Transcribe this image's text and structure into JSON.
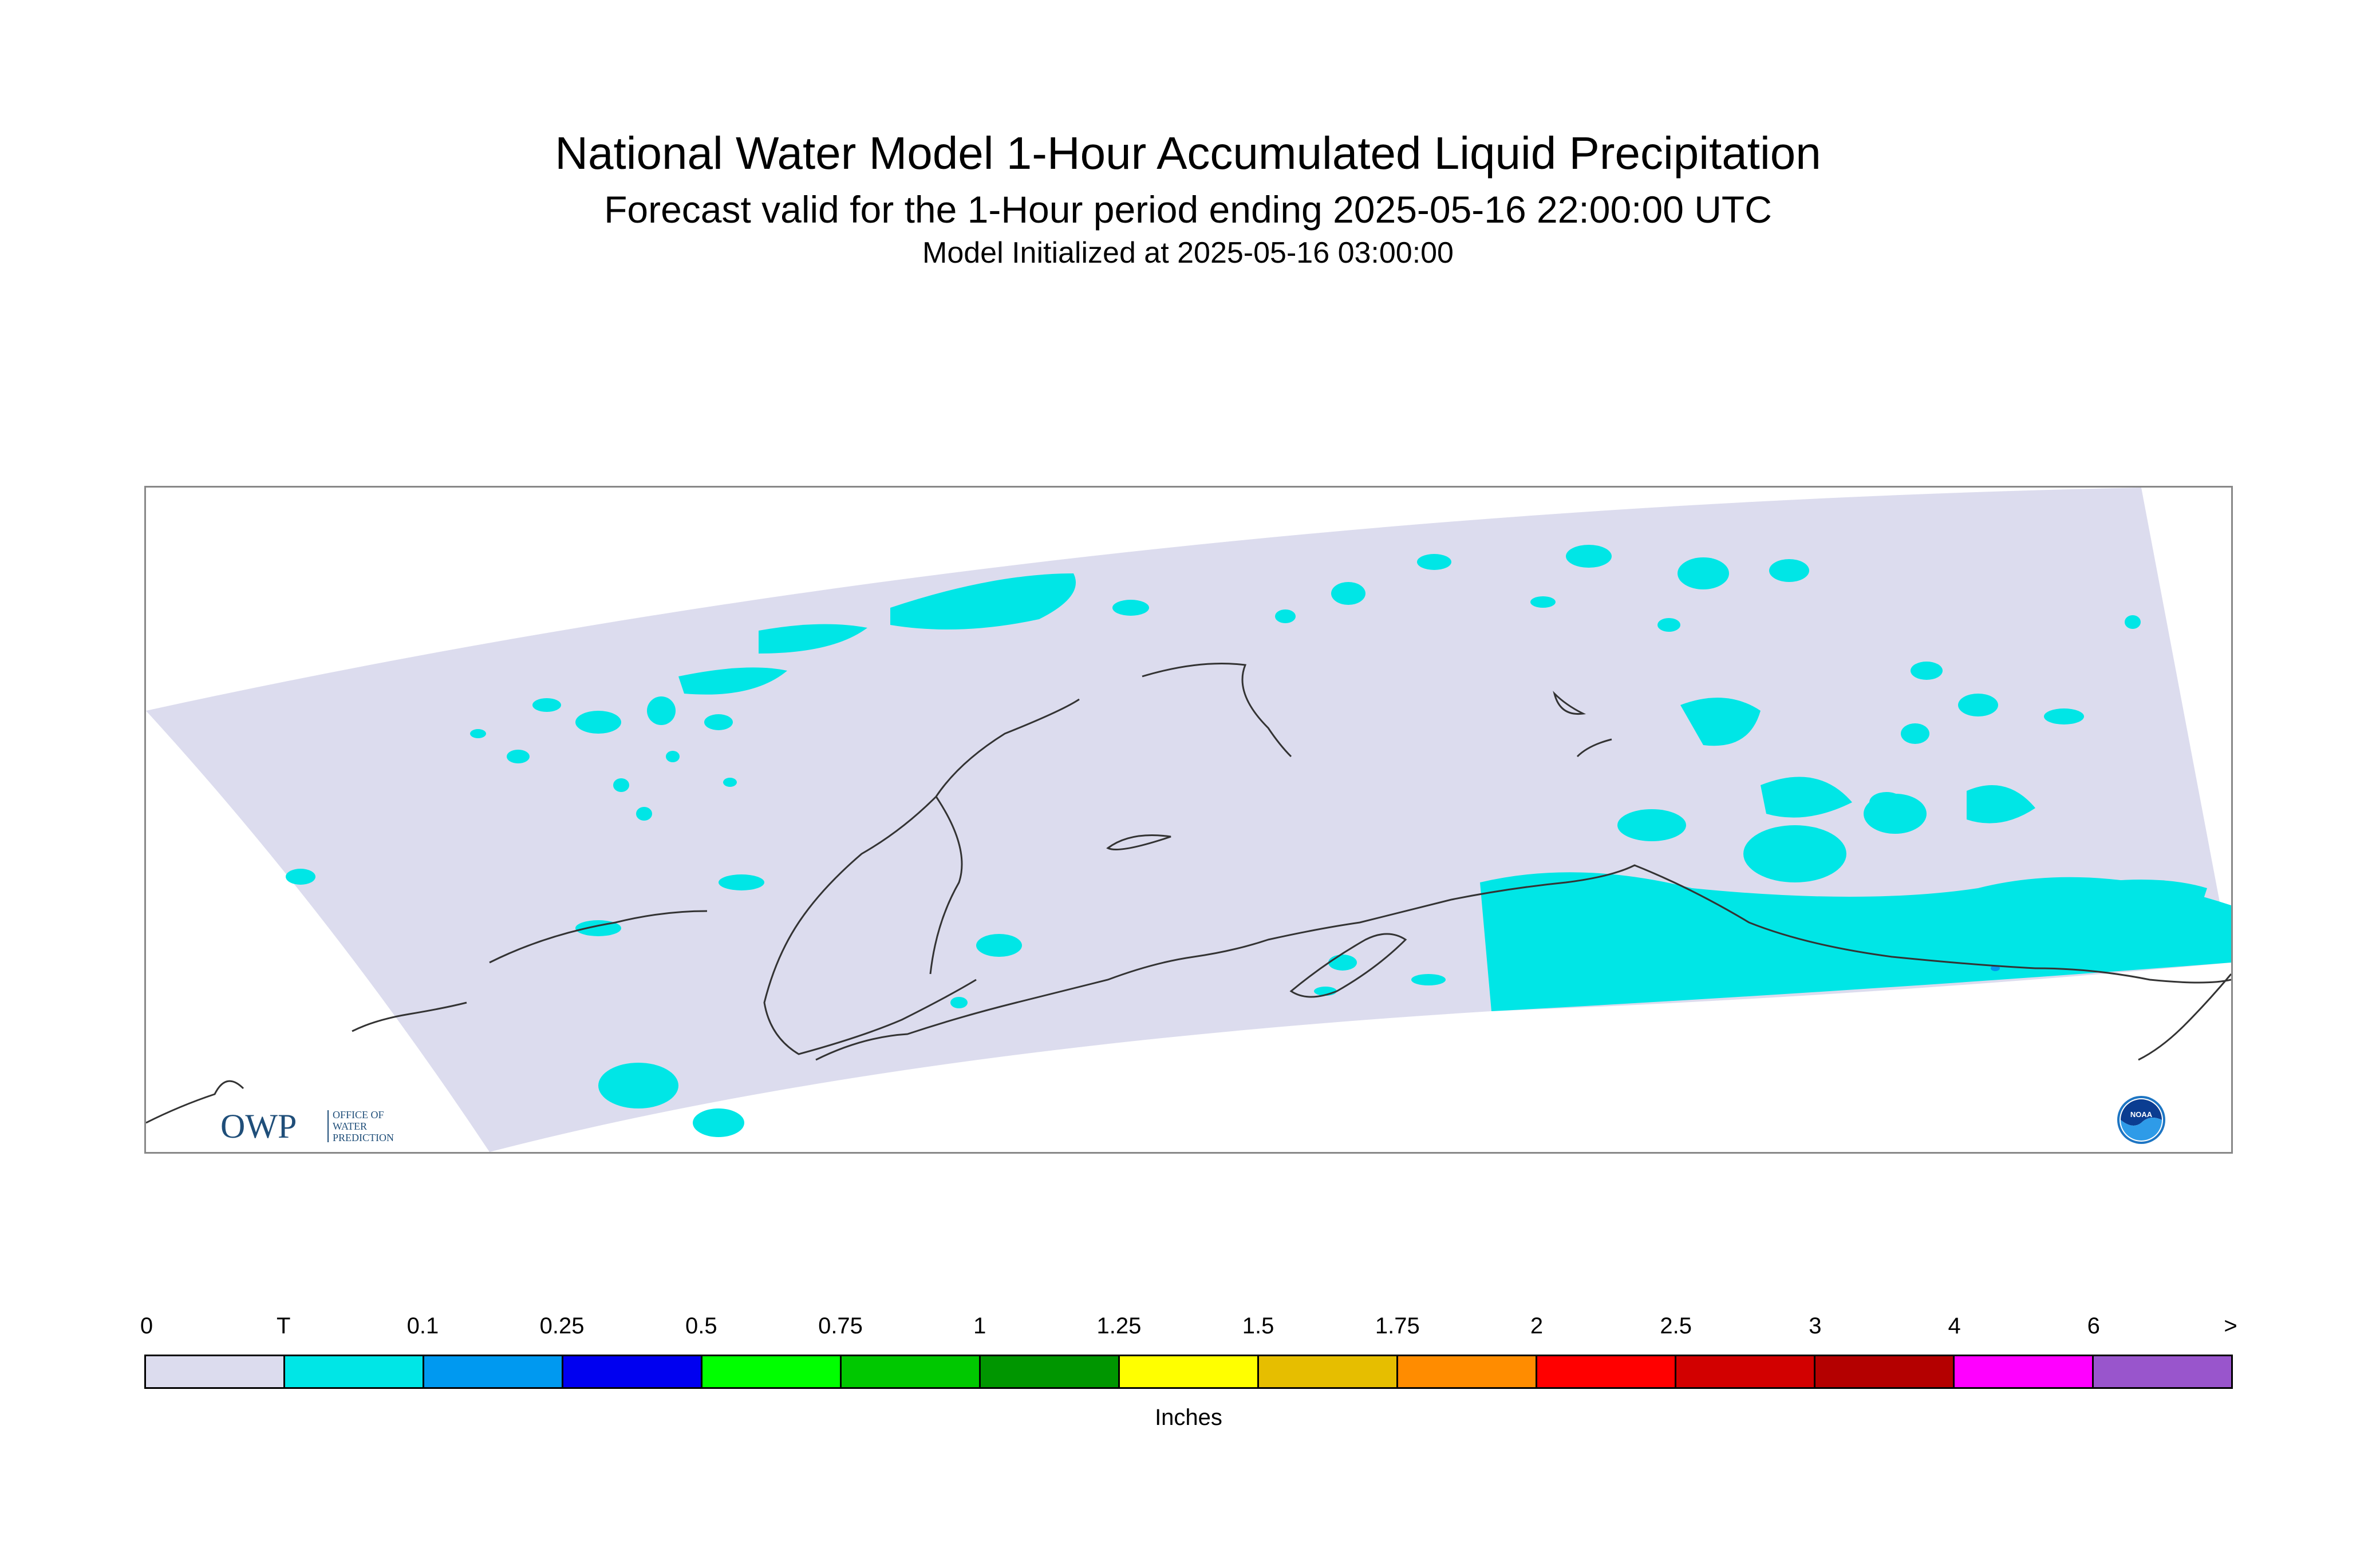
{
  "header": {
    "title": "National Water Model 1-Hour Accumulated Liquid Precipitation",
    "subtitle": "Forecast valid for the 1-Hour period ending 2025-05-16 22:00:00 UTC",
    "initialized": "Model Initialized at 2025-05-16 03:00:00"
  },
  "map": {
    "domain_color": "#dcdcee",
    "trace_color": "#00e6e6",
    "light_precip_color": "#0099f0",
    "coastline_color": "#333333"
  },
  "logos": {
    "owp": {
      "mark": "OWP",
      "line1": "OFFICE OF",
      "line2": "WATER",
      "line3": "PREDICTION"
    },
    "noaa": {
      "mark": "NOAA"
    }
  },
  "legend": {
    "ticks": [
      "0",
      "T",
      "0.1",
      "0.25",
      "0.5",
      "0.75",
      "1",
      "1.25",
      "1.5",
      "1.75",
      "2",
      "2.5",
      "3",
      "4",
      "6",
      ">"
    ],
    "colors": [
      "#dcdcee",
      "#00e6e6",
      "#0099f0",
      "#0000f0",
      "#00ff00",
      "#00c800",
      "#009600",
      "#ffff00",
      "#e6be00",
      "#ff8c00",
      "#ff0000",
      "#d20000",
      "#b40000",
      "#ff00ff",
      "#9955cc"
    ],
    "unit": "Inches"
  }
}
